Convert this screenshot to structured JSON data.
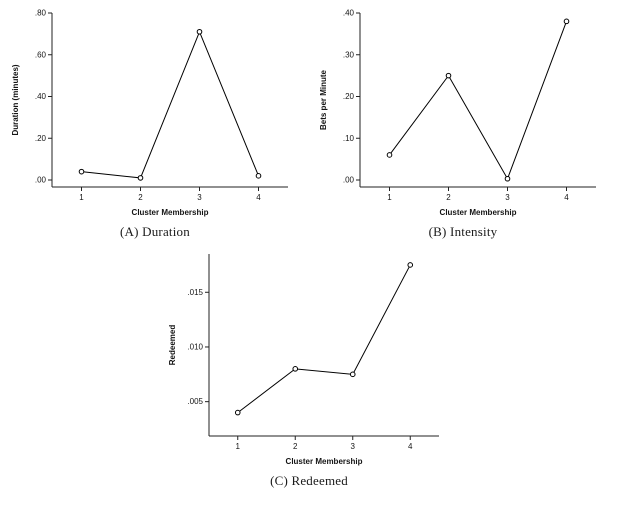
{
  "page": {
    "background": "#ffffff"
  },
  "colors": {
    "axis": "#222222",
    "line": "#000000",
    "marker_fill": "#ffffff"
  },
  "chart_data": [
    {
      "type": "line",
      "caption": "(A) Duration",
      "xlabel": "Cluster Membership",
      "ylabel": "Duration (minutes)",
      "x": [
        1,
        2,
        3,
        4
      ],
      "x_labels": [
        "1",
        "2",
        "3",
        "4"
      ],
      "values": [
        0.04,
        0.01,
        0.71,
        0.02
      ],
      "ylim": [
        0.0,
        0.8
      ],
      "yticks": [
        {
          "v": 0.0,
          "label": ".00"
        },
        {
          "v": 0.2,
          "label": ".20"
        },
        {
          "v": 0.4,
          "label": ".40"
        },
        {
          "v": 0.6,
          "label": ".60"
        },
        {
          "v": 0.8,
          "label": ".80"
        }
      ],
      "marker": "open-circle",
      "line_color": "#000000",
      "grid": false,
      "legend": "none"
    },
    {
      "type": "line",
      "caption": "(B) Intensity",
      "xlabel": "Cluster Membership",
      "ylabel": "Bets per Minute",
      "x": [
        1,
        2,
        3,
        4
      ],
      "x_labels": [
        "1",
        "2",
        "3",
        "4"
      ],
      "values": [
        0.06,
        0.25,
        0.003,
        0.38
      ],
      "ylim": [
        0.0,
        0.4
      ],
      "yticks": [
        {
          "v": 0.0,
          "label": ".00"
        },
        {
          "v": 0.1,
          "label": ".10"
        },
        {
          "v": 0.2,
          "label": ".20"
        },
        {
          "v": 0.3,
          "label": ".30"
        },
        {
          "v": 0.4,
          "label": ".40"
        }
      ],
      "marker": "open-circle",
      "line_color": "#000000",
      "grid": false,
      "legend": "none"
    },
    {
      "type": "line",
      "caption": "(C) Redeemed",
      "xlabel": "Cluster Membership",
      "ylabel": "Redeemed",
      "x": [
        1,
        2,
        3,
        4
      ],
      "x_labels": [
        "1",
        "2",
        "3",
        "4"
      ],
      "values": [
        0.004,
        0.008,
        0.0075,
        0.0175
      ],
      "ylim": [
        0.0025,
        0.0185
      ],
      "yticks": [
        {
          "v": 0.005,
          "label": ".005"
        },
        {
          "v": 0.01,
          "label": ".010"
        },
        {
          "v": 0.015,
          "label": ".015"
        }
      ],
      "marker": "open-circle",
      "line_color": "#000000",
      "grid": false,
      "legend": "none"
    }
  ]
}
